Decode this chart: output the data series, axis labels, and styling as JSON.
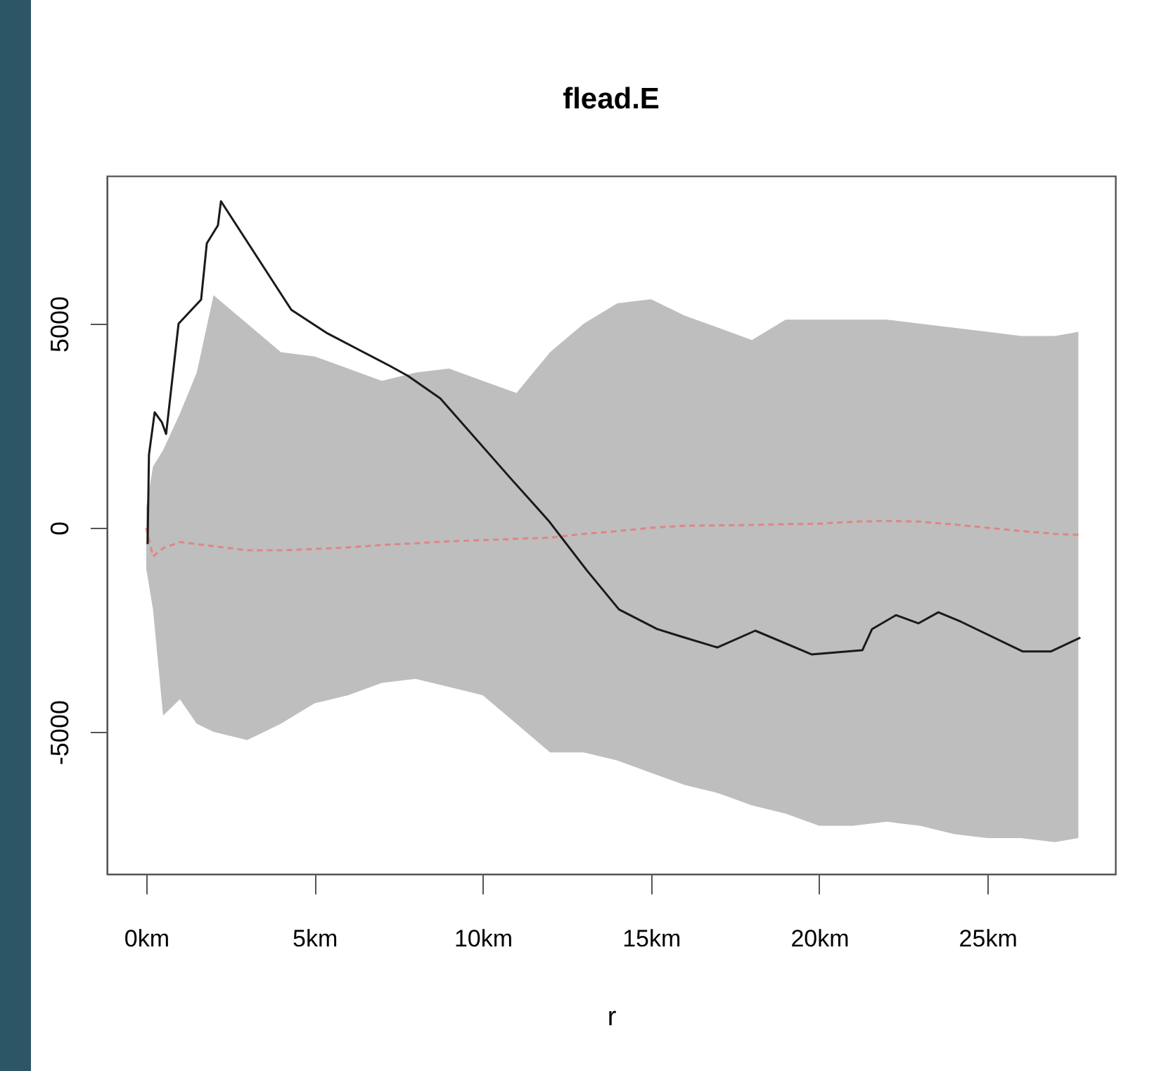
{
  "chart_data": {
    "type": "line",
    "title": "flead.E",
    "xlabel": "r",
    "xlim": [
      -1.17,
      28.8
    ],
    "ylim": [
      -8480,
      8620
    ],
    "xticks": [
      {
        "value": 0,
        "label": "0km"
      },
      {
        "value": 5,
        "label": "5km"
      },
      {
        "value": 10,
        "label": "10km"
      },
      {
        "value": 15,
        "label": "15km"
      },
      {
        "value": 20,
        "label": "20km"
      },
      {
        "value": 25,
        "label": "25km"
      }
    ],
    "yticks": [
      -5000,
      0,
      5000
    ],
    "grid": false,
    "series": [
      {
        "color": "#e08585",
        "line_style": "dashed",
        "x": [
          0,
          0.2,
          0.5,
          1,
          1.5,
          2,
          3,
          4,
          5,
          6,
          7,
          8,
          9,
          10,
          11,
          12,
          13,
          14,
          15,
          16,
          17,
          18,
          19,
          20,
          21,
          22,
          23,
          24,
          25,
          26,
          27,
          27.7
        ],
        "values": [
          0,
          -700,
          -500,
          -350,
          -400,
          -450,
          -550,
          -550,
          -520,
          -480,
          -420,
          -380,
          -330,
          -300,
          -270,
          -240,
          -150,
          -80,
          0,
          50,
          60,
          70,
          90,
          100,
          150,
          170,
          150,
          80,
          0,
          -80,
          -150,
          -170
        ],
        "lower": [
          -1000,
          -2000,
          -4600,
          -4200,
          -4800,
          -5000,
          -5200,
          -4800,
          -4300,
          -4100,
          -3800,
          -3700,
          -3900,
          -4100,
          -4800,
          -5500,
          -5500,
          -5700,
          -6000,
          -6300,
          -6500,
          -6800,
          -7000,
          -7300,
          -7300,
          -7200,
          -7300,
          -7500,
          -7600,
          -7600,
          -7700,
          -7600
        ],
        "upper": [
          500,
          1500,
          1900,
          2800,
          3800,
          5700,
          5000,
          4300,
          4200,
          3900,
          3600,
          3800,
          3900,
          3600,
          3300,
          4300,
          5000,
          5500,
          5600,
          5200,
          4900,
          4600,
          5100,
          5100,
          5100,
          5100,
          5000,
          4900,
          4800,
          4700,
          4700,
          4800
        ]
      },
      {
        "color": "#1a1a1a",
        "line_style": "solid",
        "x": [
          0.04,
          0.08,
          0.25,
          0.46,
          0.59,
          0.96,
          1.63,
          1.8,
          2.13,
          2.22,
          4.31,
          5.39,
          7.23,
          7.78,
          8.74,
          10.83,
          11.96,
          13.09,
          14.05,
          15.18,
          15.84,
          16.97,
          18.1,
          19.77,
          21.28,
          21.57,
          22.28,
          22.95,
          23.54,
          24.21,
          26.05,
          26.88,
          27.76
        ],
        "values": [
          -400,
          1790,
          2830,
          2590,
          2300,
          5000,
          5590,
          6970,
          7410,
          8000,
          5340,
          4760,
          3970,
          3720,
          3170,
          1210,
          170,
          -1040,
          -2000,
          -2480,
          -2650,
          -2930,
          -2520,
          -3100,
          -3000,
          -2480,
          -2140,
          -2340,
          -2070,
          -2300,
          -3030,
          -3030,
          -2690
        ]
      }
    ]
  }
}
